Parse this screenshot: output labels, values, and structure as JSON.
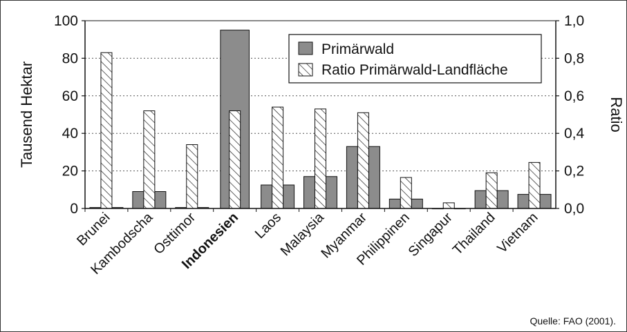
{
  "chart_data": {
    "type": "bar",
    "categories": [
      "Brunei",
      "Kambodscha",
      "Osttimor",
      "Indonesien",
      "Laos",
      "Malaysia",
      "Myanmar",
      "Philippinen",
      "Singapur",
      "Thailand",
      "Vietnam"
    ],
    "highlight_category": "Indonesien",
    "series": [
      {
        "name": "Primärwald",
        "axis": "left",
        "style": "solid-gray",
        "values": [
          0.5,
          9,
          0.5,
          95,
          12.5,
          17,
          33,
          5,
          0,
          9.5,
          7.5
        ]
      },
      {
        "name": "Ratio Primärwald-Landfläche",
        "axis": "right",
        "style": "hatched",
        "values": [
          0.83,
          0.52,
          0.34,
          0.52,
          0.54,
          0.53,
          0.51,
          0.165,
          0.03,
          0.19,
          0.245
        ]
      }
    ],
    "ylabel": "Tausend Hektar",
    "y2label": "Ratio",
    "ylim": [
      0,
      100
    ],
    "y2lim": [
      0,
      1.0
    ],
    "yticks": [
      "0",
      "20",
      "40",
      "60",
      "80",
      "100"
    ],
    "y2ticks": [
      "0,0",
      "0,2",
      "0,4",
      "0,6",
      "0,8",
      "1,0"
    ],
    "grid": "horizontal-dotted",
    "legend_position": "top-right"
  },
  "source_note": "Quelle: FAO (2001).",
  "colors": {
    "primary_bar": "#8c8c8c",
    "outline": "#111111",
    "grid": "#555555"
  }
}
